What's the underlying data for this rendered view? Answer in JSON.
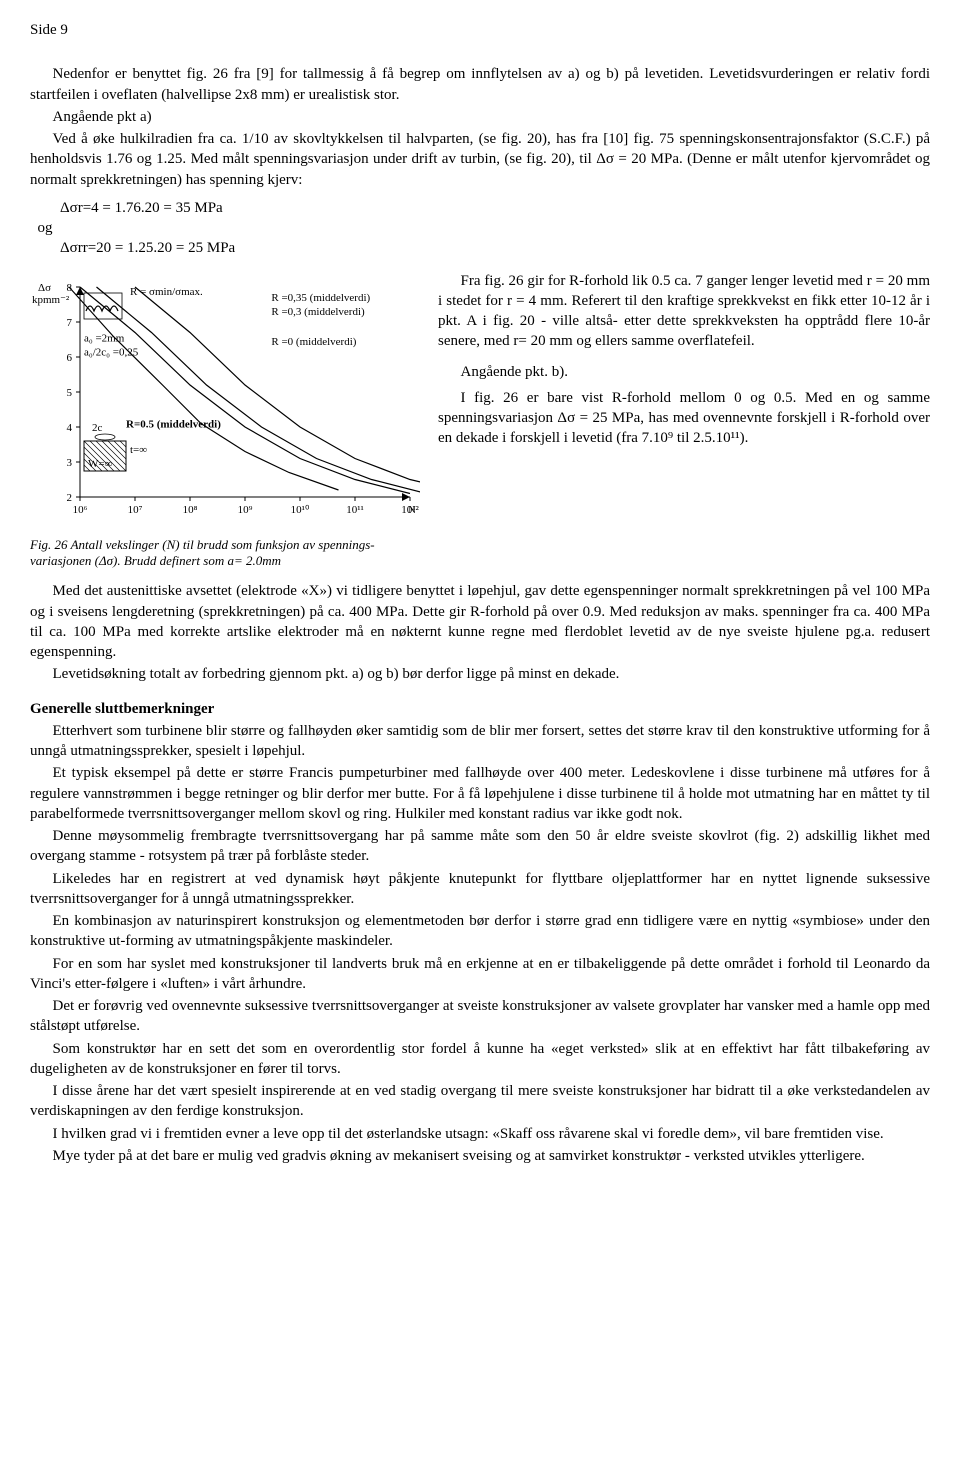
{
  "page_header": "Side 9",
  "para1": "Nedenfor er benyttet fig. 26 fra [9] for tallmessig å få begrep om innflytelsen av a) og b) på levetiden. Levetidsvurderingen er relativ fordi startfeilen i oveflaten (halvellipse 2x8 mm) er urealistisk stor.",
  "para2_lead": "Angående pkt a)",
  "para3": "Ved å øke hulkilradien fra ca. 1/10 av skovltykkelsen til halvparten, (se fig. 20), has fra [10] fig. 75 spenningskonsentrajonsfaktor (S.C.F.) på henholdsvis 1.76 og 1.25. Med målt spenningsvariasjon under drift av turbin, (se fig. 20), til Δσ = 20 MPa. (Denne er målt utenfor kjervområdet og normalt sprekkretningen) has spenning kjerv:",
  "equations": {
    "line1": "Δσr=4 = 1.76.20 = 35 MPa",
    "og": "og",
    "line2": "Δσrr=20 = 1.25.20 = 25 MPa"
  },
  "right_col": {
    "p1": "Fra fig. 26 gir for R-forhold lik 0.5 ca. 7 ganger lenger levetid med r = 20 mm i stedet for r = 4 mm. Referert til den kraftige sprekkvekst en fikk etter 10-12 år i pkt. A i fig. 20 - ville altså- etter dette sprekkveksten ha opptrådd flere 10-år senere, med r= 20 mm og ellers samme overflatefeil.",
    "p2": "Angående pkt. b).",
    "p3": "I fig. 26 er bare vist R-forhold mellom 0 og 0.5. Med en og samme spenningsvariasjon Δσ = 25 MPa, has med ovennevnte forskjell i R-forhold over en dekade i forskjell i levetid (fra 7.10⁹ til 2.5.10¹¹)."
  },
  "chart": {
    "type": "line",
    "title_text": "Fig. 26   Antall vekslinger (N) til brudd som funksjon av spennings-variasjonen (Δσ). Brudd definert som a= 2.0mm",
    "x_label_ticks": [
      "10⁶",
      "10⁷",
      "10⁸",
      "10⁹",
      "10¹⁰",
      "10¹¹",
      "10¹²"
    ],
    "x_label_end": "N",
    "y_label": "Δσ\nkpmm⁻²",
    "y_ticks": [
      2,
      3,
      4,
      5,
      6,
      7,
      8
    ],
    "xlim": [
      6,
      12
    ],
    "ylim": [
      2,
      8
    ],
    "curve_line_width": 1.2,
    "axis_color": "#000000",
    "background_color": "#ffffff",
    "text_color": "#000000",
    "font_size_axis": 11,
    "font_size_labels": 11,
    "inset_labels": {
      "formula": "R = σmin/σmax.",
      "a0": "a₀ =2mm",
      "a0_2c0": "a₀/2c₀ =0,25",
      "twoC": "2c",
      "tinf": "t=∞",
      "winf": "W=∞"
    },
    "curves": [
      {
        "label": "R =0,35 (middelverdi)",
        "points_logN": [
          6.0,
          7.0,
          8.0,
          9.0,
          10.0,
          11.0,
          12.0
        ],
        "points_dsigma": [
          8.0,
          6.7,
          5.2,
          4.0,
          3.1,
          2.5,
          2.1
        ]
      },
      {
        "label": "R =0,3 (middelverdi)",
        "points_logN": [
          6.3,
          7.3,
          8.3,
          9.3,
          10.3,
          11.3,
          12.3
        ],
        "points_dsigma": [
          8.0,
          6.7,
          5.2,
          4.0,
          3.1,
          2.5,
          2.1
        ]
      },
      {
        "label": "R =0 (middelverdi)",
        "points_logN": [
          7.0,
          8.0,
          9.0,
          10.0,
          11.0,
          12.0,
          12.8
        ],
        "points_dsigma": [
          8.0,
          6.7,
          5.2,
          4.0,
          3.1,
          2.5,
          2.2
        ]
      },
      {
        "label": "R=0.5 (middelverdi)",
        "points_logN": [
          5.8,
          6.6,
          7.5,
          8.2,
          9.0,
          9.8,
          10.7
        ],
        "points_dsigma": [
          8.0,
          6.6,
          5.2,
          4.1,
          3.3,
          2.7,
          2.2
        ]
      }
    ]
  },
  "para_after_fig": "Med det austenittiske avsettet (elektrode «X») vi tidligere benyttet i løpehjul, gav dette egenspenninger normalt sprekkretningen på vel 100 MPa og i sveisens lengderetning (sprekkretningen) på ca. 400 MPa. Dette gir R-forhold på over 0.9. Med reduksjon av maks. spenninger fra ca. 400 MPa til ca. 100 MPa med korrekte artslike elektroder må en nøkternt kunne regne med flerdoblet levetid av de nye sveiste hjulene pg.a. redusert egenspenning.",
  "para_after_fig2": "Levetidsøkning totalt av forbedring gjennom pkt. a) og b) bør derfor ligge på minst en dekade.",
  "section_title": "Generelle sluttbemerkninger",
  "gs": {
    "p1": "Etterhvert som turbinene blir større og fallhøyden øker samtidig som de blir mer forsert, settes det større krav til den konstruktive utforming for å unngå utmatningssprekker, spesielt i løpehjul.",
    "p2": "Et typisk eksempel på dette er større Francis pumpeturbiner med fallhøyde over 400 meter. Ledeskovlene i disse turbinene må utføres for å regulere vannstrømmen i begge retninger og blir derfor mer butte. For å få løpehjulene i disse turbinene til å holde mot utmatning har en måttet ty til parabelformede tverrsnittsoverganger mellom skovl og ring. Hulkiler med konstant radius var ikke godt nok.",
    "p3": "Denne møysommelig frembragte tverrsnittsovergang har på samme måte som den 50 år eldre sveiste skovlrot (fig. 2) adskillig likhet med overgang stamme - rotsystem på trær på forblåste steder.",
    "p4": "Likeledes har en registrert at ved dynamisk høyt påkjente knutepunkt for flyttbare oljeplattformer har en nyttet lignende suksessive tverrsnittsoverganger for å unngå utmatningssprekker.",
    "p5": "En kombinasjon av naturinspirert konstruksjon og elementmetoden bør derfor i større grad enn tidligere være en nyttig «symbiose» under den konstruktive ut-forming av utmatningspåkjente maskindeler.",
    "p6": "For en som har syslet med konstruksjoner til landverts bruk må en erkjenne at en er tilbakeliggende på dette området i forhold til Leonardo da Vinci's etter-følgere i «luften» i vårt århundre.",
    "p7": "Det er forøvrig ved ovennevnte suksessive tverrsnittsoverganger at sveiste konstruksjoner av valsete grovplater har vansker med a hamle opp med stålstøpt utførelse.",
    "p8": "Som konstruktør har en sett det som en overordentlig stor fordel å kunne ha «eget verksted» slik at en effektivt har fått tilbakeføring av dugeligheten av de konstruksjoner en fører til torvs.",
    "p9": "I disse årene har det vært spesielt inspirerende at en ved stadig overgang til mere sveiste konstruksjoner har bidratt til a øke verkstedandelen av verdiskapningen av den ferdige konstruksjon.",
    "p10": "I hvilken grad vi i fremtiden evner a leve opp til det østerlandske utsagn: «Skaff oss råvarene skal vi foredle dem», vil bare fremtiden vise.",
    "p11": "Mye tyder på at det bare er mulig ved gradvis økning av mekanisert sveising og at samvirket konstruktør - verksted utvikles ytterligere."
  }
}
